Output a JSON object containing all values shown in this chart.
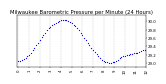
{
  "title": "Milwaukee Barometric Pressure per Minute (24 Hours)",
  "background_color": "#ffffff",
  "dot_color": "#0000ff",
  "grid_color": "#aaaaaa",
  "x_data": [
    0,
    1,
    2,
    3,
    4,
    5,
    6,
    7,
    8,
    9,
    10,
    11,
    12,
    13,
    14,
    15,
    16,
    17,
    18,
    19,
    20,
    21,
    22,
    23,
    24,
    25,
    26,
    27,
    28,
    29,
    30,
    31,
    32,
    33,
    34,
    35,
    36,
    37,
    38,
    39,
    40,
    41,
    42,
    43,
    44,
    45,
    46,
    47,
    48,
    49,
    50,
    51,
    52,
    53,
    54,
    55,
    56,
    57,
    58,
    59,
    60,
    61,
    62,
    63,
    64,
    65,
    66,
    67,
    68,
    69,
    70,
    71
  ],
  "y_data": [
    29.05,
    29.06,
    29.08,
    29.1,
    29.13,
    29.16,
    29.2,
    29.25,
    29.3,
    29.36,
    29.42,
    29.48,
    29.55,
    29.62,
    29.68,
    29.73,
    29.78,
    29.83,
    29.87,
    29.9,
    29.93,
    29.96,
    29.98,
    30.0,
    30.02,
    30.03,
    30.03,
    30.02,
    30.0,
    29.98,
    29.95,
    29.92,
    29.88,
    29.83,
    29.78,
    29.73,
    29.67,
    29.61,
    29.55,
    29.49,
    29.43,
    29.37,
    29.31,
    29.26,
    29.21,
    29.16,
    29.12,
    29.08,
    29.05,
    29.03,
    29.02,
    29.01,
    29.01,
    29.02,
    29.03,
    29.05,
    29.08,
    29.11,
    29.14,
    29.16,
    29.18,
    29.19,
    29.2,
    29.21,
    29.22,
    29.23,
    29.24,
    29.25,
    29.26,
    29.28,
    29.3,
    29.32
  ],
  "ylim": [
    28.9,
    30.15
  ],
  "xlim": [
    -1,
    72
  ],
  "yticks": [
    29.0,
    29.2,
    29.4,
    29.6,
    29.8,
    30.0
  ],
  "ytick_labels": [
    "29.0",
    "29.2",
    "29.4",
    "29.6",
    "29.8",
    "30.0"
  ],
  "xticks": [
    0,
    6,
    12,
    18,
    24,
    30,
    36,
    42,
    48,
    54,
    60,
    66,
    72
  ],
  "xtick_labels": [
    "0",
    "1",
    "2",
    "3",
    "4",
    "5",
    "6",
    "7",
    "8",
    "9",
    "10",
    "11",
    "12"
  ],
  "vgrid_positions": [
    0,
    6,
    12,
    18,
    24,
    30,
    36,
    42,
    48,
    54,
    60,
    66,
    72
  ],
  "title_fontsize": 3.8,
  "tick_fontsize": 2.8,
  "dot_size": 0.8,
  "yaxis_right": true
}
